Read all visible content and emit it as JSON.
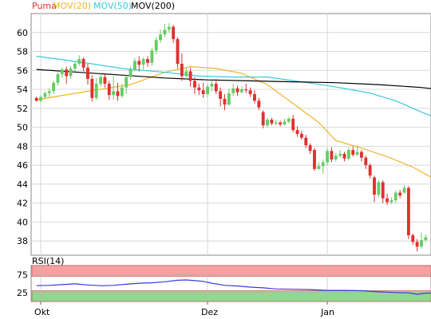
{
  "legend": [
    {
      "label": "Puma",
      "color": "#e03030"
    },
    {
      "label": "MOV(20)",
      "color": "#f0b428"
    },
    {
      "label": "MOV(50)",
      "color": "#3cc8dc"
    },
    {
      "label": "MOV(200)",
      "color": "#000000"
    }
  ],
  "rsi_label": "RSI(14)",
  "colors": {
    "up": "#66cc66",
    "down": "#e03030",
    "rsi_line": "#3b3bd6",
    "rsi_upper_band": "#f6a0a0",
    "rsi_lower_band": "#90d890",
    "grid": "#d8d8d8"
  },
  "chart_data": [
    {
      "type": "candlestick",
      "title": "",
      "xlabel": "",
      "ylabel": "",
      "ylim": [
        36.5,
        62
      ],
      "y_ticks": [
        38,
        40,
        42,
        44,
        46,
        48,
        50,
        52,
        54,
        56,
        58,
        60
      ],
      "x_ticks": [
        {
          "label": "Okt",
          "index": 1
        },
        {
          "label": "Dez",
          "index": 40
        },
        {
          "label": "Jan",
          "index": 68
        }
      ],
      "grid": true,
      "candles": [
        [
          53.1,
          52.8,
          53.2,
          52.7
        ],
        [
          52.8,
          53.2,
          53.4,
          52.6
        ],
        [
          53.2,
          53.6,
          53.8,
          53.0
        ],
        [
          53.6,
          53.8,
          54.1,
          53.2
        ],
        [
          53.8,
          54.7,
          54.9,
          53.5
        ],
        [
          54.7,
          55.6,
          55.8,
          54.4
        ],
        [
          55.6,
          56.1,
          56.3,
          55.2
        ],
        [
          56.1,
          55.4,
          56.4,
          54.6
        ],
        [
          55.4,
          56.2,
          56.5,
          55.1
        ],
        [
          56.2,
          56.7,
          57.0,
          55.9
        ],
        [
          56.7,
          57.2,
          57.6,
          56.5
        ],
        [
          57.2,
          56.3,
          57.4,
          55.9
        ],
        [
          56.3,
          55.1,
          56.7,
          54.5
        ],
        [
          55.1,
          53.1,
          55.5,
          52.7
        ],
        [
          53.1,
          54.6,
          55.2,
          52.9
        ],
        [
          54.6,
          55.3,
          55.8,
          54.3
        ],
        [
          55.3,
          54.6,
          55.6,
          54.2
        ],
        [
          54.6,
          53.4,
          54.9,
          52.9
        ],
        [
          53.4,
          53.8,
          55.4,
          52.9
        ],
        [
          53.8,
          53.3,
          54.7,
          52.8
        ],
        [
          53.3,
          54.2,
          54.6,
          53.1
        ],
        [
          54.2,
          55.3,
          55.6,
          53.5
        ],
        [
          55.3,
          56.1,
          56.4,
          55.0
        ],
        [
          56.1,
          57.0,
          57.3,
          55.9
        ],
        [
          57.0,
          56.6,
          57.5,
          55.9
        ],
        [
          56.6,
          57.2,
          57.4,
          56.1
        ],
        [
          57.2,
          56.8,
          57.5,
          56.4
        ],
        [
          56.8,
          58.1,
          58.4,
          56.5
        ],
        [
          58.1,
          59.2,
          59.5,
          57.7
        ],
        [
          59.2,
          59.8,
          60.3,
          58.9
        ],
        [
          59.8,
          60.3,
          60.9,
          59.5
        ],
        [
          60.3,
          60.6,
          61.0,
          60.0
        ],
        [
          60.6,
          59.3,
          60.8,
          58.9
        ],
        [
          59.3,
          56.7,
          59.5,
          56.2
        ],
        [
          56.7,
          55.4,
          57.8,
          54.9
        ],
        [
          55.4,
          55.9,
          56.3,
          55.0
        ],
        [
          55.9,
          54.9,
          56.3,
          54.3
        ],
        [
          54.9,
          54.2,
          55.3,
          53.5
        ],
        [
          54.2,
          53.9,
          54.6,
          53.4
        ],
        [
          53.9,
          53.5,
          54.7,
          53.1
        ],
        [
          53.5,
          54.3,
          54.6,
          53.2
        ],
        [
          54.3,
          54.6,
          54.9,
          53.8
        ],
        [
          54.6,
          53.8,
          55.1,
          53.5
        ],
        [
          53.8,
          53.0,
          54.2,
          52.2
        ],
        [
          53.0,
          52.4,
          53.5,
          51.8
        ],
        [
          52.4,
          53.6,
          54.1,
          52.3
        ],
        [
          53.6,
          54.1,
          54.6,
          53.3
        ],
        [
          54.1,
          53.7,
          54.4,
          53.3
        ],
        [
          53.7,
          54.0,
          54.3,
          53.6
        ],
        [
          54.0,
          53.9,
          54.6,
          53.6
        ],
        [
          53.9,
          53.5,
          54.2,
          53.2
        ],
        [
          53.5,
          52.8,
          53.9,
          52.5
        ],
        [
          52.8,
          52.1,
          53.1,
          51.8
        ],
        [
          51.6,
          50.2,
          51.8,
          49.9
        ],
        [
          50.2,
          50.8,
          51.0,
          50.0
        ],
        [
          50.8,
          50.4,
          51.0,
          50.2
        ],
        [
          50.4,
          50.5,
          50.8,
          50.2
        ],
        [
          50.5,
          50.3,
          50.7,
          50.1
        ],
        [
          50.3,
          50.6,
          50.9,
          50.2
        ],
        [
          50.6,
          50.9,
          51.1,
          50.4
        ],
        [
          50.9,
          49.7,
          51.3,
          49.5
        ],
        [
          49.7,
          49.3,
          50.1,
          49.0
        ],
        [
          49.3,
          48.9,
          49.6,
          48.7
        ],
        [
          48.9,
          48.1,
          49.2,
          47.8
        ],
        [
          48.1,
          47.5,
          48.3,
          47.2
        ],
        [
          47.6,
          45.6,
          47.8,
          45.4
        ],
        [
          45.6,
          45.9,
          46.3,
          45.5
        ],
        [
          45.9,
          46.3,
          46.6,
          45.1
        ],
        [
          46.3,
          47.5,
          47.8,
          46.0
        ],
        [
          47.5,
          46.6,
          47.9,
          46.3
        ],
        [
          46.6,
          47.0,
          47.3,
          46.4
        ],
        [
          47.0,
          47.2,
          47.6,
          46.8
        ],
        [
          47.2,
          46.7,
          47.4,
          46.4
        ],
        [
          46.7,
          47.6,
          47.9,
          46.5
        ],
        [
          47.6,
          47.1,
          48.0,
          46.9
        ],
        [
          47.1,
          47.4,
          48.1,
          47.0
        ],
        [
          47.4,
          46.8,
          47.6,
          46.4
        ],
        [
          46.8,
          46.0,
          47.0,
          45.6
        ],
        [
          46.0,
          44.9,
          46.2,
          44.6
        ],
        [
          44.7,
          42.9,
          44.9,
          42.1
        ],
        [
          42.9,
          44.2,
          44.4,
          42.6
        ],
        [
          44.2,
          42.5,
          44.4,
          42.0
        ],
        [
          42.5,
          42.1,
          43.0,
          41.8
        ],
        [
          42.1,
          42.3,
          42.6,
          41.9
        ],
        [
          42.3,
          43.1,
          43.3,
          42.0
        ],
        [
          43.1,
          42.8,
          43.4,
          42.5
        ],
        [
          43.1,
          43.6,
          43.9,
          43.0
        ],
        [
          43.6,
          38.6,
          43.8,
          38.2
        ],
        [
          38.6,
          37.9,
          38.8,
          37.6
        ],
        [
          37.9,
          37.4,
          38.2,
          36.9
        ],
        [
          37.4,
          38.1,
          38.9,
          37.2
        ],
        [
          38.1,
          38.4,
          38.7,
          37.9
        ]
      ],
      "series": [
        {
          "name": "MOV(20)",
          "points": [
            [
              0,
              52.9
            ],
            [
              12,
              53.8
            ],
            [
              22,
              54.5
            ],
            [
              30,
              55.8
            ],
            [
              36,
              56.4
            ],
            [
              42,
              56.2
            ],
            [
              48,
              55.7
            ],
            [
              54,
              54.5
            ],
            [
              60,
              52.5
            ],
            [
              66,
              50.5
            ],
            [
              70,
              48.6
            ],
            [
              76,
              47.8
            ],
            [
              82,
              46.9
            ],
            [
              88,
              45.8
            ],
            [
              94,
              44.3
            ]
          ]
        },
        {
          "name": "MOV(50)",
          "points": [
            [
              0,
              57.5
            ],
            [
              10,
              56.9
            ],
            [
              20,
              56.2
            ],
            [
              30,
              55.8
            ],
            [
              38,
              55.4
            ],
            [
              46,
              55.3
            ],
            [
              54,
              55.3
            ],
            [
              62,
              54.8
            ],
            [
              68,
              54.4
            ],
            [
              72,
              54.1
            ],
            [
              78,
              53.6
            ],
            [
              84,
              52.8
            ],
            [
              90,
              51.6
            ],
            [
              94,
              50.9
            ]
          ]
        },
        {
          "name": "MOV(200)",
          "points": [
            [
              0,
              56.1
            ],
            [
              10,
              55.8
            ],
            [
              20,
              55.5
            ],
            [
              30,
              55.2
            ],
            [
              40,
              55.0
            ],
            [
              50,
              54.9
            ],
            [
              60,
              54.8
            ],
            [
              70,
              54.7
            ],
            [
              80,
              54.5
            ],
            [
              90,
              54.2
            ],
            [
              94,
              54.0
            ]
          ]
        }
      ]
    },
    {
      "type": "line",
      "title": "RSI(14)",
      "ylim": [
        0,
        100
      ],
      "y_ticks": [
        25,
        75
      ],
      "bands": [
        {
          "from": 70,
          "to": 100,
          "color": "#f6a0a0"
        },
        {
          "from": 0,
          "to": 30,
          "color": "#90d890"
        }
      ],
      "series": [
        {
          "name": "RSI(14)",
          "points": [
            [
              0,
              44
            ],
            [
              3,
              45
            ],
            [
              6,
              47
            ],
            [
              9,
              49
            ],
            [
              12,
              46
            ],
            [
              15,
              44
            ],
            [
              18,
              45
            ],
            [
              21,
              48
            ],
            [
              24,
              51
            ],
            [
              27,
              52
            ],
            [
              30,
              55
            ],
            [
              33,
              59
            ],
            [
              35,
              60
            ],
            [
              37,
              58
            ],
            [
              39,
              56
            ],
            [
              41,
              51
            ],
            [
              44,
              45
            ],
            [
              47,
              43
            ],
            [
              50,
              40
            ],
            [
              53,
              38
            ],
            [
              56,
              35
            ],
            [
              60,
              34
            ],
            [
              64,
              33
            ],
            [
              68,
              31
            ],
            [
              72,
              31
            ],
            [
              76,
              30
            ],
            [
              80,
              27
            ],
            [
              84,
              25
            ],
            [
              87,
              24
            ],
            [
              89,
              20
            ],
            [
              91,
              23
            ],
            [
              94,
              24
            ]
          ]
        }
      ]
    }
  ]
}
